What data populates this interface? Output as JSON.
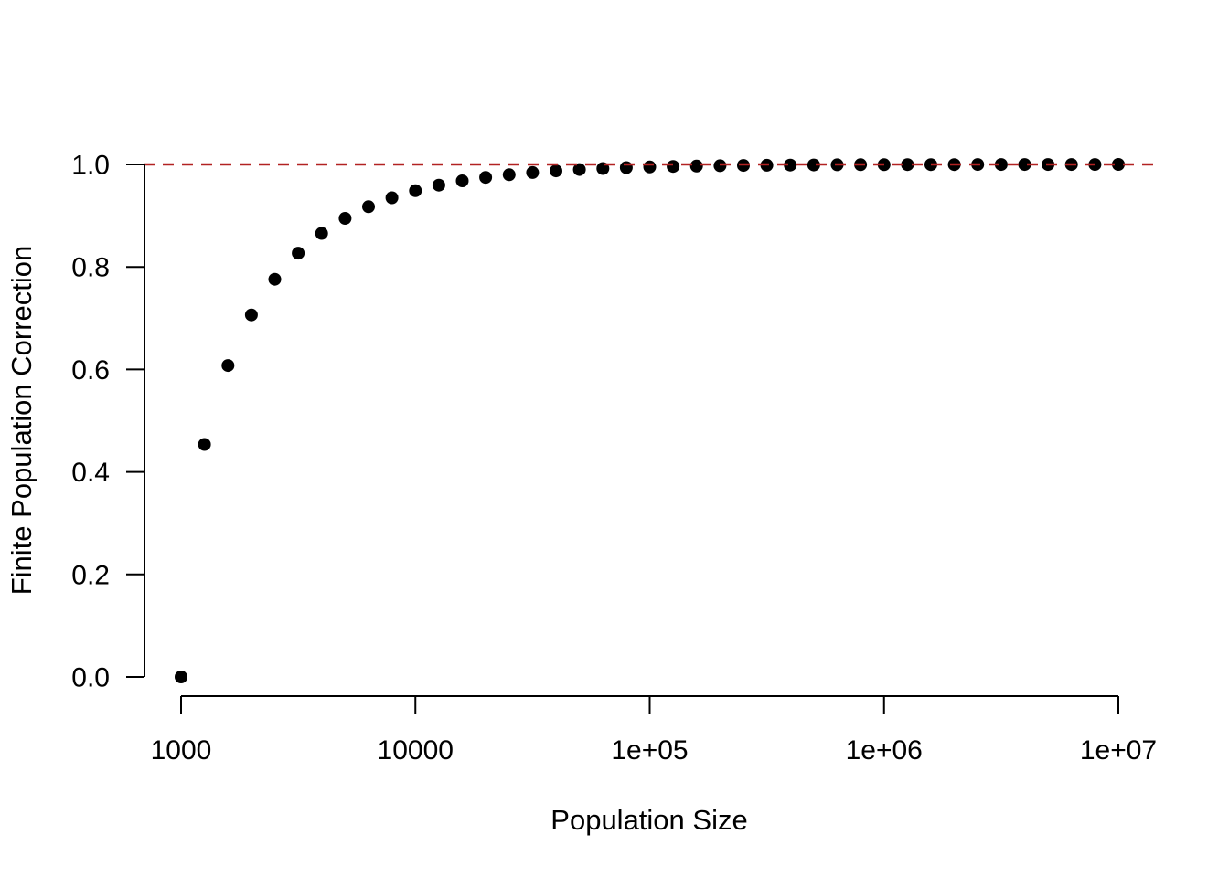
{
  "chart_data": {
    "type": "scatter",
    "title": "",
    "xlabel": "Population Size",
    "ylabel": "Finite Population Correction",
    "x_scale": "log10",
    "xlim_log10": [
      3,
      7
    ],
    "ylim": [
      0,
      1
    ],
    "grid": false,
    "legend": "none",
    "x_ticks": [
      {
        "value": 1000,
        "label": "1000"
      },
      {
        "value": 10000,
        "label": "10000"
      },
      {
        "value": 100000,
        "label": "1e+05"
      },
      {
        "value": 1000000,
        "label": "1e+06"
      },
      {
        "value": 10000000,
        "label": "1e+07"
      }
    ],
    "y_ticks": [
      {
        "value": 0.0,
        "label": "0.0"
      },
      {
        "value": 0.2,
        "label": "0.2"
      },
      {
        "value": 0.4,
        "label": "0.4"
      },
      {
        "value": 0.6,
        "label": "0.6"
      },
      {
        "value": 0.8,
        "label": "0.8"
      },
      {
        "value": 1.0,
        "label": "1.0"
      }
    ],
    "reference_line": {
      "y": 1.0,
      "style": "dashed",
      "color": "#B22222"
    },
    "point_style": {
      "shape": "filled-circle",
      "color": "#000000",
      "radius_px": 7
    },
    "sample_size_n": 1000,
    "series": [
      {
        "name": "fpc",
        "points": [
          {
            "N": 1000,
            "fpc": 0.0
          },
          {
            "N": 1259,
            "fpc": 0.4537
          },
          {
            "N": 1585,
            "fpc": 0.6077
          },
          {
            "N": 1995,
            "fpc": 0.7064
          },
          {
            "N": 2512,
            "fpc": 0.776
          },
          {
            "N": 3162,
            "fpc": 0.827
          },
          {
            "N": 3981,
            "fpc": 0.8655
          },
          {
            "N": 5012,
            "fpc": 0.8948
          },
          {
            "N": 6310,
            "fpc": 0.9174
          },
          {
            "N": 7943,
            "fpc": 0.935
          },
          {
            "N": 10000,
            "fpc": 0.9487
          },
          {
            "N": 12589,
            "fpc": 0.9595
          },
          {
            "N": 15849,
            "fpc": 0.968
          },
          {
            "N": 19953,
            "fpc": 0.9746
          },
          {
            "N": 25119,
            "fpc": 0.9799
          },
          {
            "N": 31623,
            "fpc": 0.9841
          },
          {
            "N": 39811,
            "fpc": 0.9874
          },
          {
            "N": 50119,
            "fpc": 0.99
          },
          {
            "N": 63096,
            "fpc": 0.992
          },
          {
            "N": 79433,
            "fpc": 0.9937
          },
          {
            "N": 100000,
            "fpc": 0.995
          },
          {
            "N": 125893,
            "fpc": 0.996
          },
          {
            "N": 158489,
            "fpc": 0.9968
          },
          {
            "N": 199526,
            "fpc": 0.9975
          },
          {
            "N": 251189,
            "fpc": 0.998
          },
          {
            "N": 316228,
            "fpc": 0.9984
          },
          {
            "N": 398107,
            "fpc": 0.9987
          },
          {
            "N": 501187,
            "fpc": 0.999
          },
          {
            "N": 630957,
            "fpc": 0.9992
          },
          {
            "N": 794328,
            "fpc": 0.9994
          },
          {
            "N": 1000000,
            "fpc": 0.9995
          },
          {
            "N": 1258925,
            "fpc": 0.9996
          },
          {
            "N": 1584893,
            "fpc": 0.9997
          },
          {
            "N": 1995262,
            "fpc": 0.9997
          },
          {
            "N": 2511886,
            "fpc": 0.9998
          },
          {
            "N": 3162278,
            "fpc": 0.9998
          },
          {
            "N": 3981072,
            "fpc": 0.9999
          },
          {
            "N": 5011872,
            "fpc": 0.9999
          },
          {
            "N": 6309573,
            "fpc": 0.9999
          },
          {
            "N": 7943282,
            "fpc": 0.9999
          },
          {
            "N": 10000000,
            "fpc": 1.0
          }
        ]
      }
    ]
  },
  "colors": {
    "background": "#FFFFFF",
    "axis": "#000000",
    "points": "#000000",
    "reference_line": "#B22222"
  }
}
